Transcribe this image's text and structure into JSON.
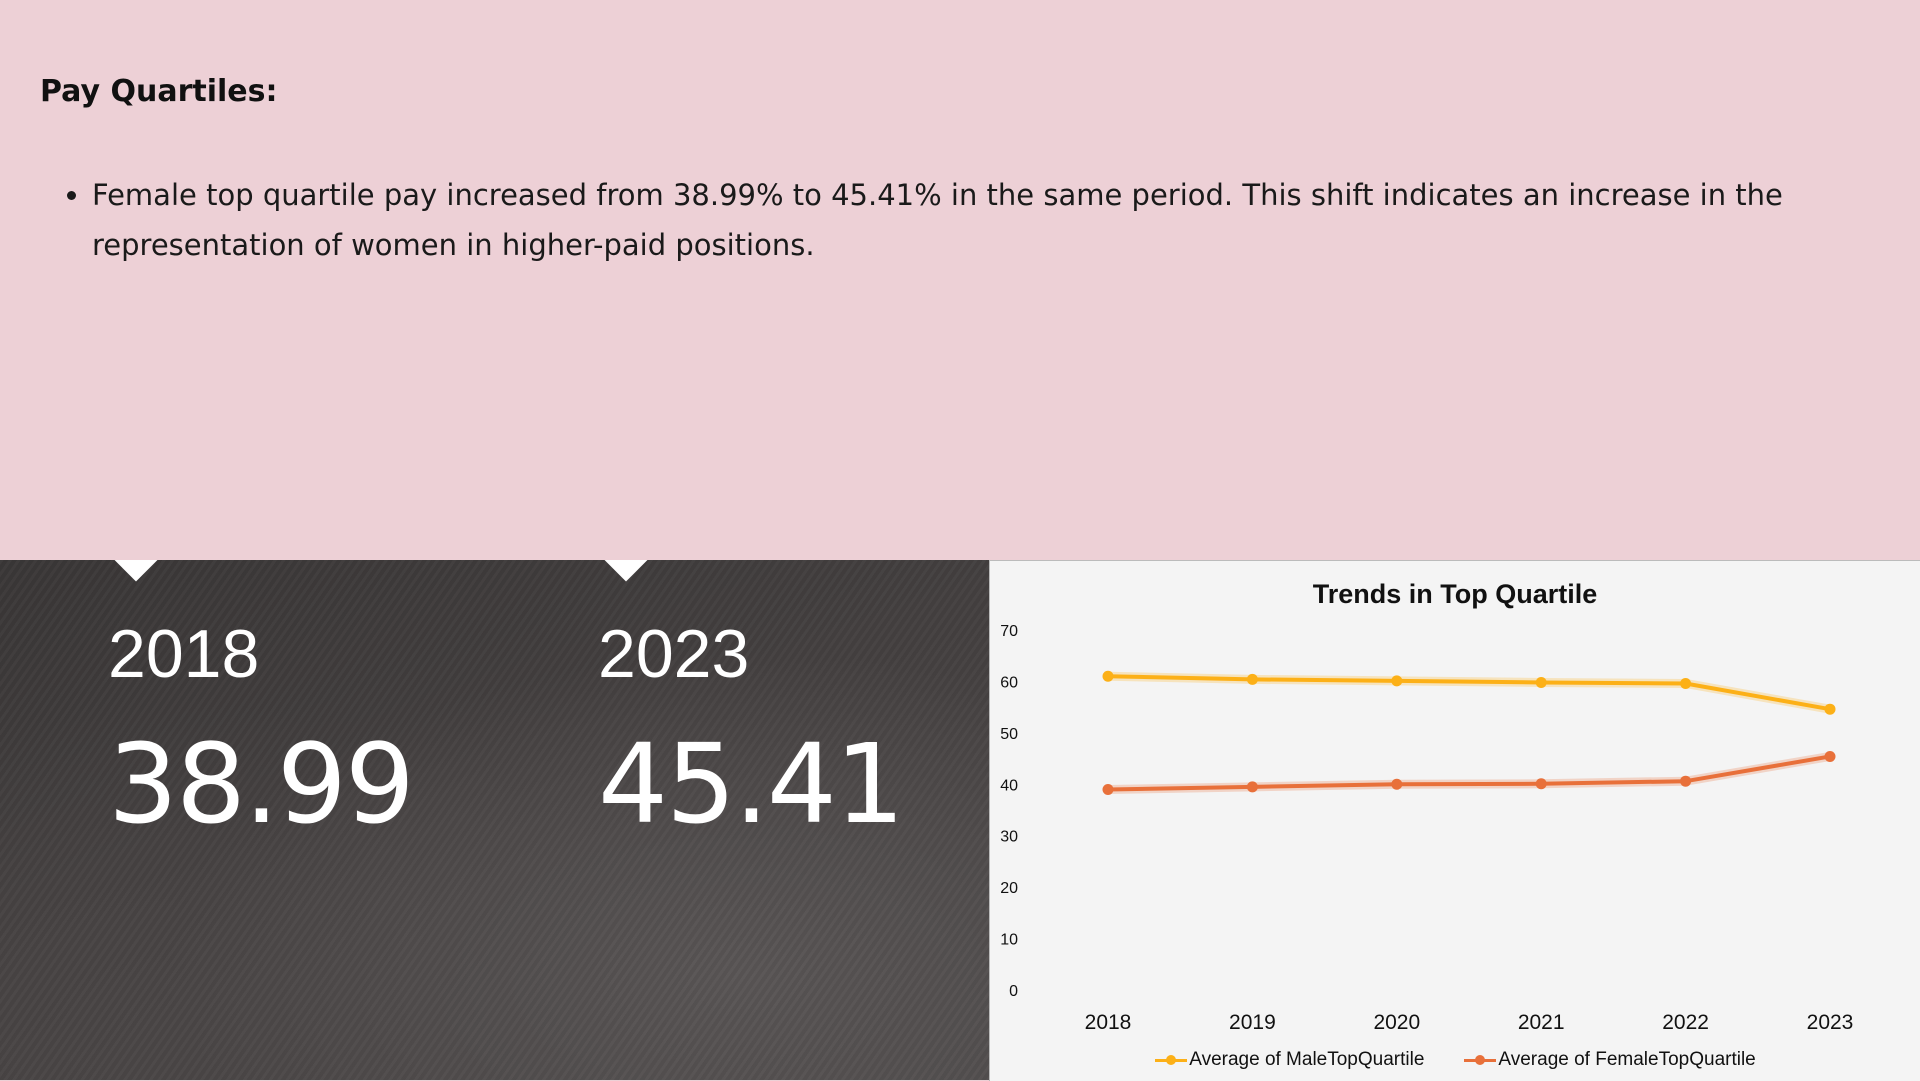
{
  "section": {
    "heading": "Pay Quartiles:",
    "bullets": [
      "Female top quartile pay increased from 38.99% to 45.41% in the same period. This shift indicates an increase in the representation of women in higher-paid positions."
    ]
  },
  "stats": [
    {
      "year": "2018",
      "value": "38.99"
    },
    {
      "year": "2023",
      "value": "45.41"
    }
  ],
  "colors": {
    "male": "#fcb017",
    "female": "#e8703a",
    "background_top": "#edd0d6"
  },
  "chart_data": {
    "type": "line",
    "title": "Trends in Top Quartile",
    "x": [
      "2018",
      "2019",
      "2020",
      "2021",
      "2022",
      "2023"
    ],
    "ylim": [
      0,
      70
    ],
    "yticks": [
      0,
      10,
      20,
      30,
      40,
      50,
      60,
      70
    ],
    "series": [
      {
        "name": "Average of MaleTopQuartile",
        "values": [
          61.0,
          60.4,
          60.1,
          59.8,
          59.6,
          54.6
        ],
        "color": "#fcb017"
      },
      {
        "name": "Average of FemaleTopQuartile",
        "values": [
          38.99,
          39.5,
          40.0,
          40.1,
          40.6,
          45.41
        ],
        "color": "#e8703a"
      }
    ],
    "grid": false,
    "legend": "bottom"
  }
}
